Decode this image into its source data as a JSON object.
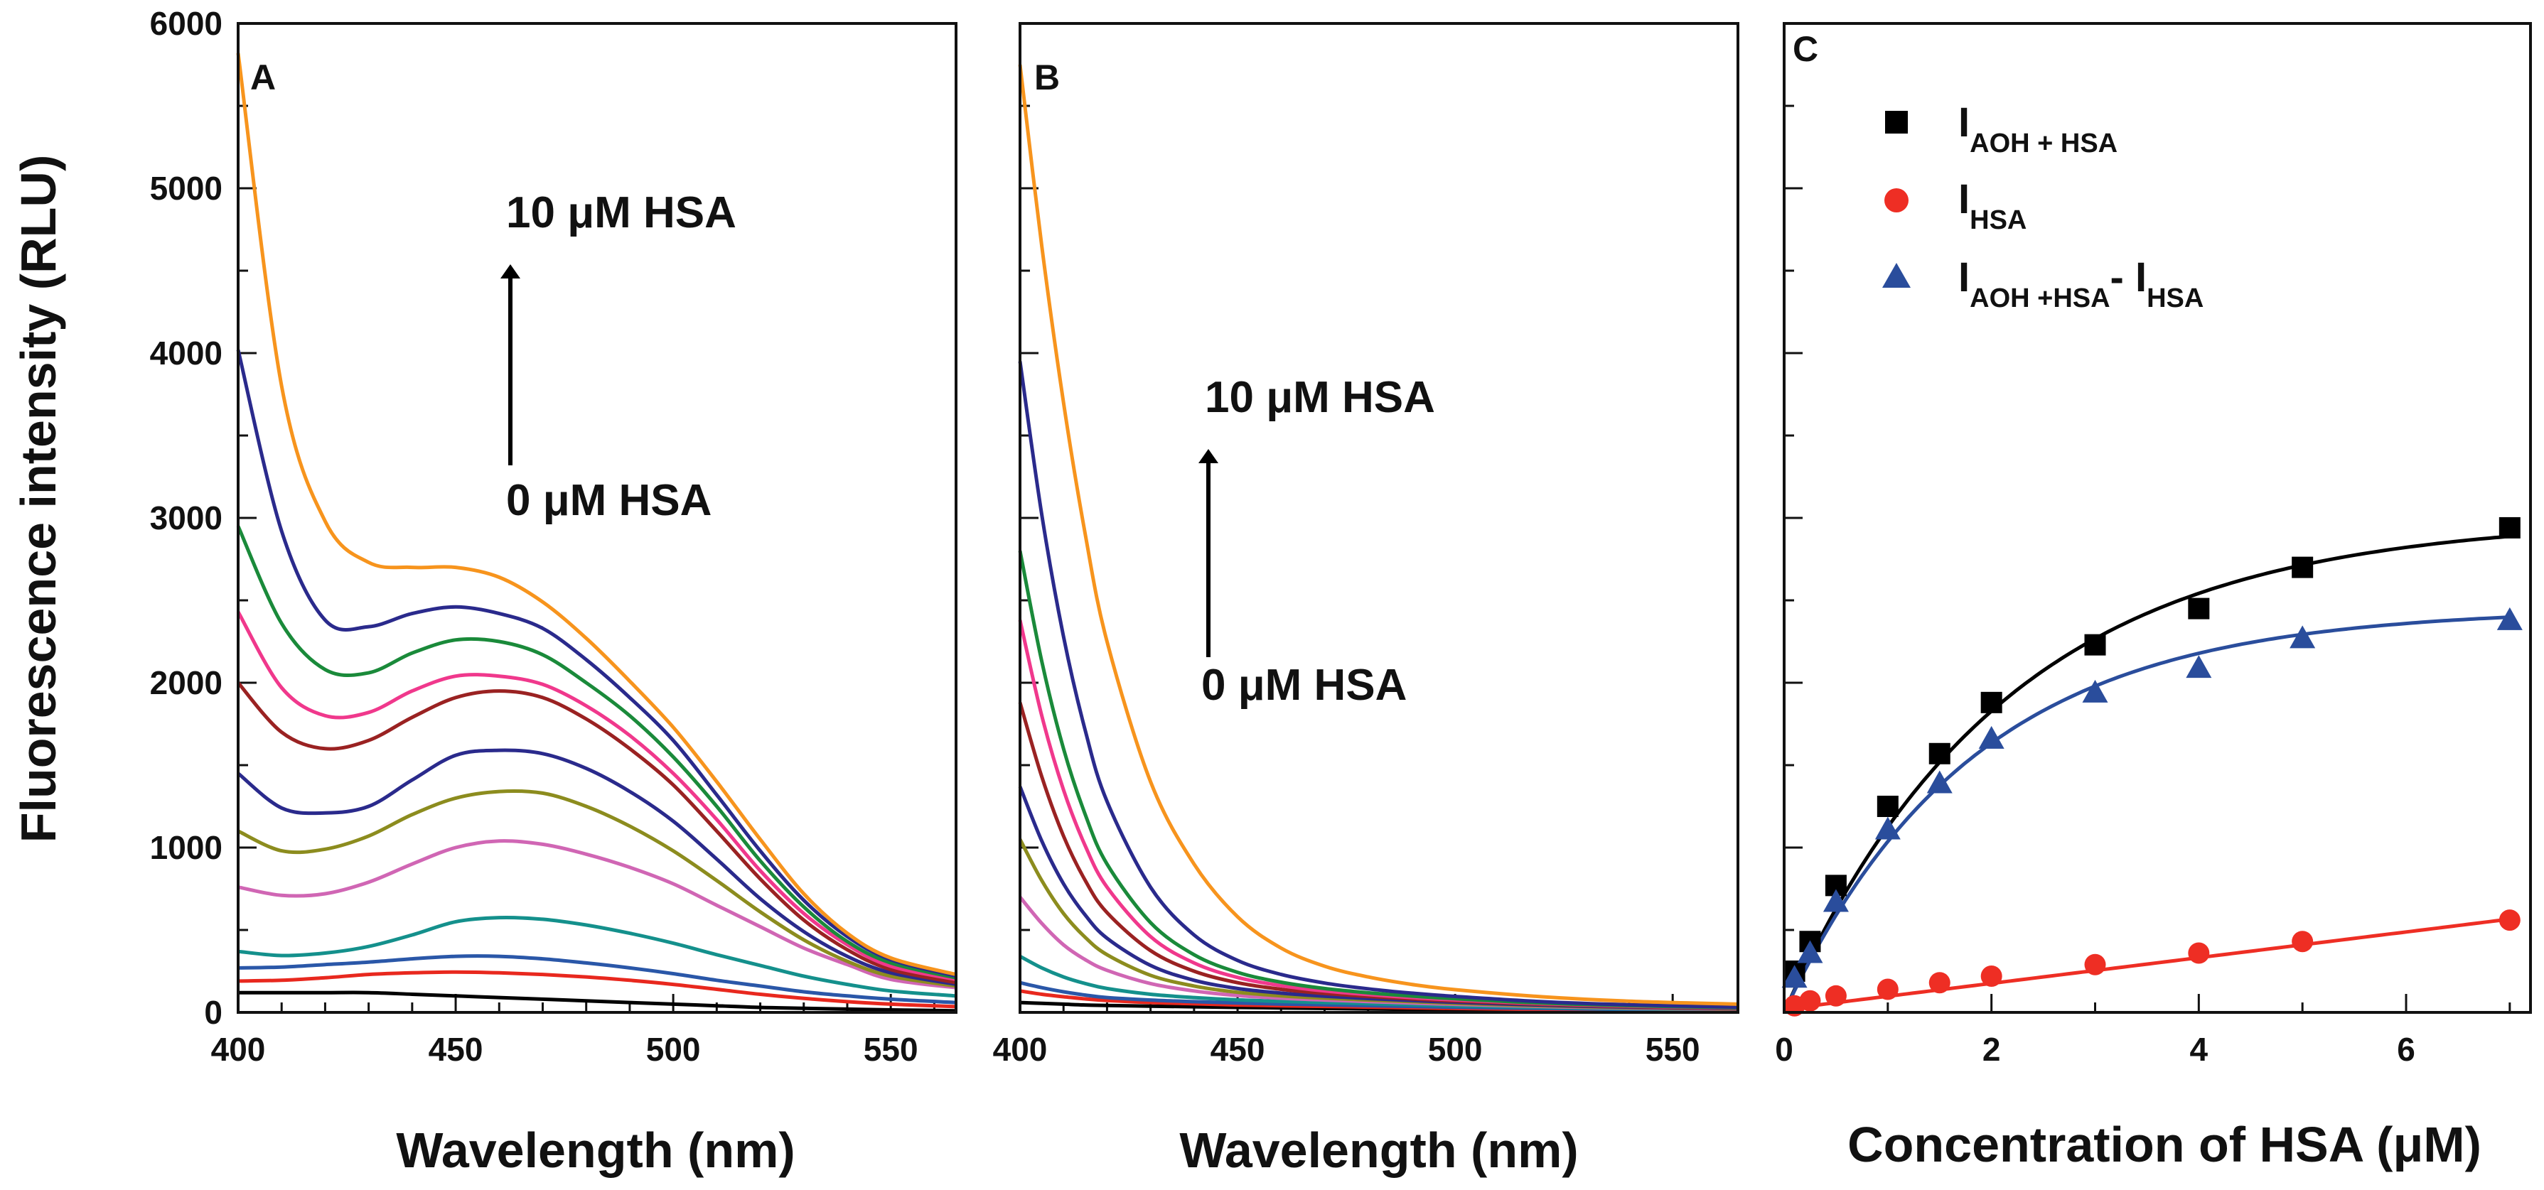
{
  "figure": {
    "ylabel": "Fluorescence intensity (RLU)"
  },
  "chart_data": [
    {
      "type": "line",
      "panel": "A",
      "xlabel": "Wavelength (nm)",
      "ylabel": "Fluorescence intensity (RLU)",
      "xlim": [
        400,
        565
      ],
      "ylim": [
        0,
        6000
      ],
      "x_ticks": [
        "400",
        "450",
        "500",
        "550"
      ],
      "y_ticks": [
        "0",
        "1000",
        "2000",
        "3000",
        "4000",
        "5000",
        "6000"
      ],
      "annotations": {
        "top": "10 μM HSA",
        "bottom": "0 μM HSA"
      },
      "x": [
        400,
        410,
        420,
        430,
        440,
        450,
        460,
        470,
        480,
        490,
        500,
        510,
        520,
        530,
        540,
        550,
        565
      ],
      "series": [
        {
          "name": "s1",
          "color": "#000000",
          "values": [
            120,
            120,
            120,
            120,
            110,
            100,
            90,
            80,
            70,
            60,
            50,
            40,
            30,
            25,
            20,
            15,
            10
          ]
        },
        {
          "name": "s2",
          "color": "#e8281e",
          "values": [
            190,
            195,
            210,
            230,
            240,
            245,
            240,
            230,
            215,
            195,
            170,
            140,
            110,
            85,
            65,
            50,
            35
          ]
        },
        {
          "name": "s3",
          "color": "#2a57a8",
          "values": [
            270,
            275,
            290,
            305,
            325,
            340,
            340,
            325,
            300,
            270,
            235,
            195,
            160,
            125,
            100,
            80,
            60
          ]
        },
        {
          "name": "s4",
          "color": "#14908c",
          "values": [
            370,
            345,
            360,
            400,
            470,
            550,
            575,
            565,
            530,
            480,
            420,
            350,
            285,
            220,
            170,
            130,
            100
          ]
        },
        {
          "name": "s5",
          "color": "#d066b4",
          "values": [
            760,
            710,
            720,
            790,
            900,
            1000,
            1040,
            1020,
            960,
            880,
            780,
            650,
            520,
            390,
            290,
            200,
            150
          ]
        },
        {
          "name": "s6",
          "color": "#8c8c1e",
          "values": [
            1100,
            980,
            990,
            1070,
            1200,
            1300,
            1340,
            1330,
            1250,
            1130,
            980,
            800,
            610,
            440,
            310,
            220,
            160
          ]
        },
        {
          "name": "s7",
          "color": "#2a2a8c",
          "values": [
            1450,
            1240,
            1210,
            1250,
            1410,
            1560,
            1590,
            1570,
            1480,
            1340,
            1160,
            930,
            690,
            490,
            340,
            240,
            170
          ]
        },
        {
          "name": "s8",
          "color": "#9a2222",
          "values": [
            2000,
            1700,
            1600,
            1650,
            1790,
            1910,
            1950,
            1910,
            1780,
            1600,
            1380,
            1100,
            810,
            560,
            380,
            260,
            180
          ]
        },
        {
          "name": "s9",
          "color": "#f0388c",
          "values": [
            2430,
            1970,
            1800,
            1820,
            1950,
            2040,
            2040,
            1990,
            1860,
            1680,
            1450,
            1170,
            860,
            600,
            410,
            280,
            200
          ]
        },
        {
          "name": "s10",
          "color": "#1a8a3a",
          "values": [
            2950,
            2360,
            2080,
            2060,
            2180,
            2260,
            2250,
            2170,
            2000,
            1800,
            1550,
            1250,
            920,
            640,
            430,
            300,
            210
          ]
        },
        {
          "name": "s11",
          "color": "#2a2a8c",
          "values": [
            4020,
            2920,
            2380,
            2340,
            2420,
            2460,
            2420,
            2330,
            2140,
            1910,
            1650,
            1320,
            980,
            680,
            460,
            320,
            220
          ]
        },
        {
          "name": "s12",
          "color": "#f7941d",
          "values": [
            5820,
            3800,
            2980,
            2730,
            2700,
            2700,
            2640,
            2490,
            2270,
            2010,
            1730,
            1400,
            1050,
            720,
            480,
            330,
            230
          ]
        }
      ]
    },
    {
      "type": "line",
      "panel": "B",
      "xlabel": "Wavelength (nm)",
      "xlim": [
        400,
        565
      ],
      "ylim": [
        0,
        6000
      ],
      "x_ticks": [
        "400",
        "450",
        "500",
        "550"
      ],
      "annotations": {
        "top": "10 μM HSA",
        "bottom": "0 μM HSA"
      },
      "x": [
        400,
        405,
        410,
        415,
        420,
        430,
        440,
        450,
        460,
        470,
        480,
        490,
        500,
        520,
        540,
        565
      ],
      "series": [
        {
          "name": "s1",
          "color": "#000000",
          "values": [
            60,
            55,
            50,
            45,
            42,
            38,
            34,
            30,
            27,
            24,
            21,
            18,
            15,
            12,
            10,
            8
          ]
        },
        {
          "name": "s2",
          "color": "#e8281e",
          "values": [
            130,
            110,
            95,
            82,
            72,
            60,
            52,
            45,
            40,
            36,
            32,
            28,
            24,
            18,
            14,
            10
          ]
        },
        {
          "name": "s3",
          "color": "#2a57a8",
          "values": [
            180,
            150,
            125,
            105,
            90,
            75,
            65,
            57,
            51,
            46,
            41,
            36,
            31,
            24,
            18,
            12
          ]
        },
        {
          "name": "s4",
          "color": "#14908c",
          "values": [
            340,
            270,
            215,
            175,
            145,
            110,
            90,
            76,
            67,
            60,
            53,
            46,
            40,
            30,
            22,
            15
          ]
        },
        {
          "name": "s5",
          "color": "#d066b4",
          "values": [
            700,
            540,
            410,
            320,
            255,
            175,
            130,
            102,
            86,
            75,
            66,
            57,
            49,
            36,
            26,
            18
          ]
        },
        {
          "name": "s6",
          "color": "#8c8c1e",
          "values": [
            1050,
            800,
            600,
            455,
            350,
            225,
            160,
            122,
            100,
            86,
            75,
            65,
            55,
            40,
            29,
            20
          ]
        },
        {
          "name": "s7",
          "color": "#2a2a8c",
          "values": [
            1370,
            1040,
            780,
            590,
            450,
            285,
            195,
            145,
            117,
            98,
            84,
            72,
            61,
            44,
            32,
            22
          ]
        },
        {
          "name": "s8",
          "color": "#9a2222",
          "values": [
            1880,
            1430,
            1070,
            800,
            605,
            375,
            250,
            180,
            140,
            115,
            97,
            82,
            69,
            49,
            35,
            24
          ]
        },
        {
          "name": "s9",
          "color": "#f0388c",
          "values": [
            2380,
            1800,
            1350,
            1010,
            760,
            460,
            300,
            212,
            162,
            130,
            108,
            90,
            76,
            53,
            38,
            26
          ]
        },
        {
          "name": "s10",
          "color": "#1a8a3a",
          "values": [
            2800,
            2130,
            1600,
            1200,
            900,
            545,
            350,
            243,
            183,
            145,
            119,
            99,
            83,
            57,
            41,
            28
          ]
        },
        {
          "name": "s11",
          "color": "#2a2a8c",
          "values": [
            3950,
            3020,
            2280,
            1710,
            1280,
            760,
            470,
            315,
            230,
            178,
            143,
            117,
            97,
            65,
            46,
            32
          ]
        },
        {
          "name": "s12",
          "color": "#f7941d",
          "values": [
            5750,
            4650,
            3700,
            2900,
            2250,
            1400,
            900,
            580,
            390,
            280,
            215,
            170,
            138,
            95,
            68,
            50
          ]
        }
      ]
    },
    {
      "type": "scatter",
      "panel": "C",
      "xlabel": "Concentration of HSA (μM)",
      "xlim": [
        0,
        7.2
      ],
      "ylim": [
        0,
        6000
      ],
      "x_ticks": [
        "0",
        "2",
        "4",
        "6"
      ],
      "legend_position": "top-left",
      "series": [
        {
          "name": "I",
          "sub": "AOH + HSA",
          "marker": "square",
          "color": "#000000",
          "x": [
            0.1,
            0.25,
            0.5,
            1,
            1.5,
            2,
            3,
            4,
            5,
            7
          ],
          "values": [
            250,
            430,
            770,
            1250,
            1570,
            1880,
            2230,
            2450,
            2700,
            2940
          ],
          "fit": {
            "a": 3000,
            "b": 0.47
          }
        },
        {
          "name": "I",
          "sub": "HSA",
          "marker": "circle",
          "color": "#ee2e24",
          "x": [
            0.1,
            0.25,
            0.5,
            1,
            1.5,
            2,
            3,
            4,
            5,
            7
          ],
          "values": [
            40,
            70,
            100,
            140,
            180,
            220,
            290,
            360,
            430,
            560
          ],
          "fit": {
            "slope": 78,
            "intercept": 20
          }
        },
        {
          "name": "I",
          "sub": "AOH +HSA",
          "sub2": "HSA",
          "sep": "- I",
          "marker": "triangle",
          "color": "#2a4d9c",
          "x": [
            0.1,
            0.25,
            0.5,
            1,
            1.5,
            2,
            3,
            4,
            5,
            7
          ],
          "values": [
            210,
            360,
            670,
            1110,
            1390,
            1660,
            1940,
            2090,
            2270,
            2380
          ],
          "fit": {
            "a": 2450,
            "b": 0.55
          }
        }
      ]
    }
  ]
}
